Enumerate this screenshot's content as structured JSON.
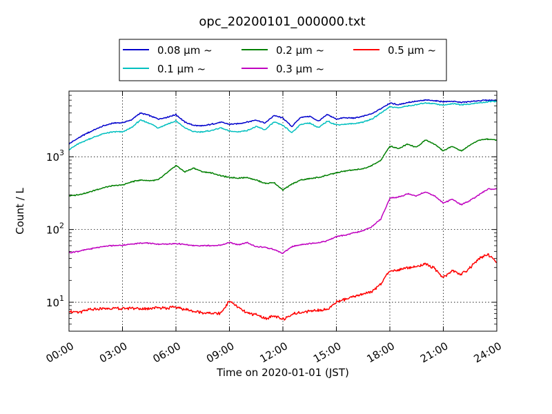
{
  "chart_data": {
    "type": "line",
    "title": "opc_20200101_000000.txt",
    "xlabel": "Time on 2020-01-01 (JST)",
    "ylabel": "Count / L",
    "x_ticks": [
      "00:00",
      "03:00",
      "06:00",
      "09:00",
      "12:00",
      "15:00",
      "18:00",
      "21:00",
      "24:00"
    ],
    "xlim": [
      "00:00",
      "24:00"
    ],
    "y_scale": "log",
    "ylim": [
      4,
      8000
    ],
    "y_ticks": [
      {
        "value": 10,
        "base": "10",
        "exp": "1"
      },
      {
        "value": 100,
        "base": "10",
        "exp": "2"
      },
      {
        "value": 1000,
        "base": "10",
        "exp": "3"
      }
    ],
    "grid": true,
    "legend": {
      "position": "top-center, above plot",
      "columns": 3
    },
    "series": [
      {
        "name": "0.08 μm ~",
        "color": "#0000cc",
        "x": [
          "00:00",
          "00:30",
          "01:00",
          "01:30",
          "02:00",
          "02:30",
          "03:00",
          "03:30",
          "04:00",
          "04:30",
          "05:00",
          "05:30",
          "06:00",
          "06:30",
          "07:00",
          "07:30",
          "08:00",
          "08:30",
          "09:00",
          "09:30",
          "10:00",
          "10:30",
          "11:00",
          "11:30",
          "12:00",
          "12:30",
          "13:00",
          "13:30",
          "14:00",
          "14:30",
          "15:00",
          "15:30",
          "16:00",
          "16:30",
          "17:00",
          "17:30",
          "18:00",
          "18:30",
          "19:00",
          "19:30",
          "20:00",
          "20:30",
          "21:00",
          "21:30",
          "22:00",
          "22:30",
          "23:00",
          "23:30",
          "24:00"
        ],
        "values": [
          1500,
          1800,
          2100,
          2400,
          2700,
          2900,
          2950,
          3200,
          4000,
          3700,
          3300,
          3500,
          3800,
          3000,
          2700,
          2650,
          2800,
          3000,
          2800,
          2850,
          3000,
          3200,
          2900,
          3700,
          3400,
          2600,
          3500,
          3600,
          3100,
          3800,
          3300,
          3450,
          3400,
          3600,
          3900,
          4600,
          5500,
          5200,
          5600,
          5800,
          6000,
          5900,
          5700,
          5800,
          5600,
          5700,
          5900,
          6000,
          6000
        ]
      },
      {
        "name": "0.1 μm ~",
        "color": "#00bfbf",
        "x": [
          "00:00",
          "00:30",
          "01:00",
          "01:30",
          "02:00",
          "02:30",
          "03:00",
          "03:30",
          "04:00",
          "04:30",
          "05:00",
          "05:30",
          "06:00",
          "06:30",
          "07:00",
          "07:30",
          "08:00",
          "08:30",
          "09:00",
          "09:30",
          "10:00",
          "10:30",
          "11:00",
          "11:30",
          "12:00",
          "12:30",
          "13:00",
          "13:30",
          "14:00",
          "14:30",
          "15:00",
          "15:30",
          "16:00",
          "16:30",
          "17:00",
          "17:30",
          "18:00",
          "18:30",
          "19:00",
          "19:30",
          "20:00",
          "20:30",
          "21:00",
          "21:30",
          "22:00",
          "22:30",
          "23:00",
          "23:30",
          "24:00"
        ],
        "values": [
          1250,
          1500,
          1700,
          1900,
          2100,
          2200,
          2200,
          2500,
          3200,
          2900,
          2500,
          2800,
          3100,
          2500,
          2200,
          2200,
          2300,
          2500,
          2250,
          2200,
          2300,
          2600,
          2350,
          3000,
          2700,
          2150,
          2800,
          2900,
          2500,
          3100,
          2750,
          2800,
          2850,
          3000,
          3300,
          4000,
          4900,
          4700,
          5000,
          5200,
          5500,
          5400,
          5100,
          5400,
          5200,
          5300,
          5500,
          5700,
          5800
        ]
      },
      {
        "name": "0.2 μm ~",
        "color": "#007f00",
        "x": [
          "00:00",
          "00:30",
          "01:00",
          "01:30",
          "02:00",
          "02:30",
          "03:00",
          "03:30",
          "04:00",
          "04:30",
          "05:00",
          "05:30",
          "06:00",
          "06:30",
          "07:00",
          "07:30",
          "08:00",
          "08:30",
          "09:00",
          "09:30",
          "10:00",
          "10:30",
          "11:00",
          "11:30",
          "12:00",
          "12:30",
          "13:00",
          "13:30",
          "14:00",
          "14:30",
          "15:00",
          "15:30",
          "16:00",
          "16:30",
          "17:00",
          "17:30",
          "18:00",
          "18:30",
          "19:00",
          "19:30",
          "20:00",
          "20:30",
          "21:00",
          "21:30",
          "22:00",
          "22:30",
          "23:00",
          "23:30",
          "24:00"
        ],
        "values": [
          290,
          300,
          320,
          350,
          380,
          400,
          410,
          450,
          480,
          470,
          480,
          600,
          760,
          620,
          700,
          620,
          600,
          550,
          520,
          510,
          520,
          480,
          430,
          440,
          350,
          420,
          480,
          500,
          520,
          560,
          600,
          640,
          660,
          680,
          760,
          900,
          1400,
          1300,
          1500,
          1350,
          1700,
          1500,
          1200,
          1400,
          1200,
          1450,
          1700,
          1750,
          1700
        ]
      },
      {
        "name": "0.3 μm ~",
        "color": "#bf00bf",
        "x": [
          "00:00",
          "00:30",
          "01:00",
          "01:30",
          "02:00",
          "02:30",
          "03:00",
          "03:30",
          "04:00",
          "04:30",
          "05:00",
          "05:30",
          "06:00",
          "06:30",
          "07:00",
          "07:30",
          "08:00",
          "08:30",
          "09:00",
          "09:30",
          "10:00",
          "10:30",
          "11:00",
          "11:30",
          "12:00",
          "12:30",
          "13:00",
          "13:30",
          "14:00",
          "14:30",
          "15:00",
          "15:30",
          "16:00",
          "16:30",
          "17:00",
          "17:30",
          "18:00",
          "18:30",
          "19:00",
          "19:30",
          "20:00",
          "20:30",
          "21:00",
          "21:30",
          "22:00",
          "22:30",
          "23:00",
          "23:30",
          "24:00"
        ],
        "values": [
          48,
          50,
          53,
          56,
          59,
          60,
          61,
          63,
          65,
          65,
          63,
          63,
          64,
          62,
          60,
          60,
          60,
          61,
          66,
          62,
          66,
          58,
          57,
          53,
          47,
          58,
          62,
          64,
          66,
          70,
          80,
          84,
          90,
          96,
          110,
          140,
          270,
          280,
          310,
          290,
          330,
          290,
          230,
          260,
          220,
          250,
          300,
          360,
          360
        ]
      },
      {
        "name": "0.5 μm ~",
        "color": "#ff0000",
        "x": [
          "00:00",
          "00:30",
          "01:00",
          "01:30",
          "02:00",
          "02:30",
          "03:00",
          "03:30",
          "04:00",
          "04:30",
          "05:00",
          "05:30",
          "06:00",
          "06:30",
          "07:00",
          "07:30",
          "08:00",
          "08:30",
          "09:00",
          "09:30",
          "10:00",
          "10:30",
          "11:00",
          "11:30",
          "12:00",
          "12:30",
          "13:00",
          "13:30",
          "14:00",
          "14:30",
          "15:00",
          "15:30",
          "16:00",
          "16:30",
          "17:00",
          "17:30",
          "18:00",
          "18:30",
          "19:00",
          "19:30",
          "20:00",
          "20:30",
          "21:00",
          "21:30",
          "22:00",
          "22:30",
          "23:00",
          "23:30",
          "24:00"
        ],
        "values": [
          7.5,
          7.2,
          7.8,
          8.0,
          8.2,
          8.3,
          8.1,
          8.4,
          8.0,
          8.3,
          8.5,
          8.3,
          8.6,
          8.0,
          7.5,
          7.2,
          7.0,
          7.0,
          10.5,
          8.5,
          7.0,
          6.8,
          6.0,
          6.5,
          5.8,
          6.8,
          7.3,
          7.6,
          7.8,
          8.0,
          10.0,
          11.0,
          12.0,
          13.0,
          14.0,
          18.0,
          27.0,
          28.0,
          30.0,
          31.0,
          34.0,
          29.0,
          22.0,
          27.0,
          24.0,
          30.0,
          40.0,
          45.0,
          36.0
        ]
      }
    ]
  }
}
